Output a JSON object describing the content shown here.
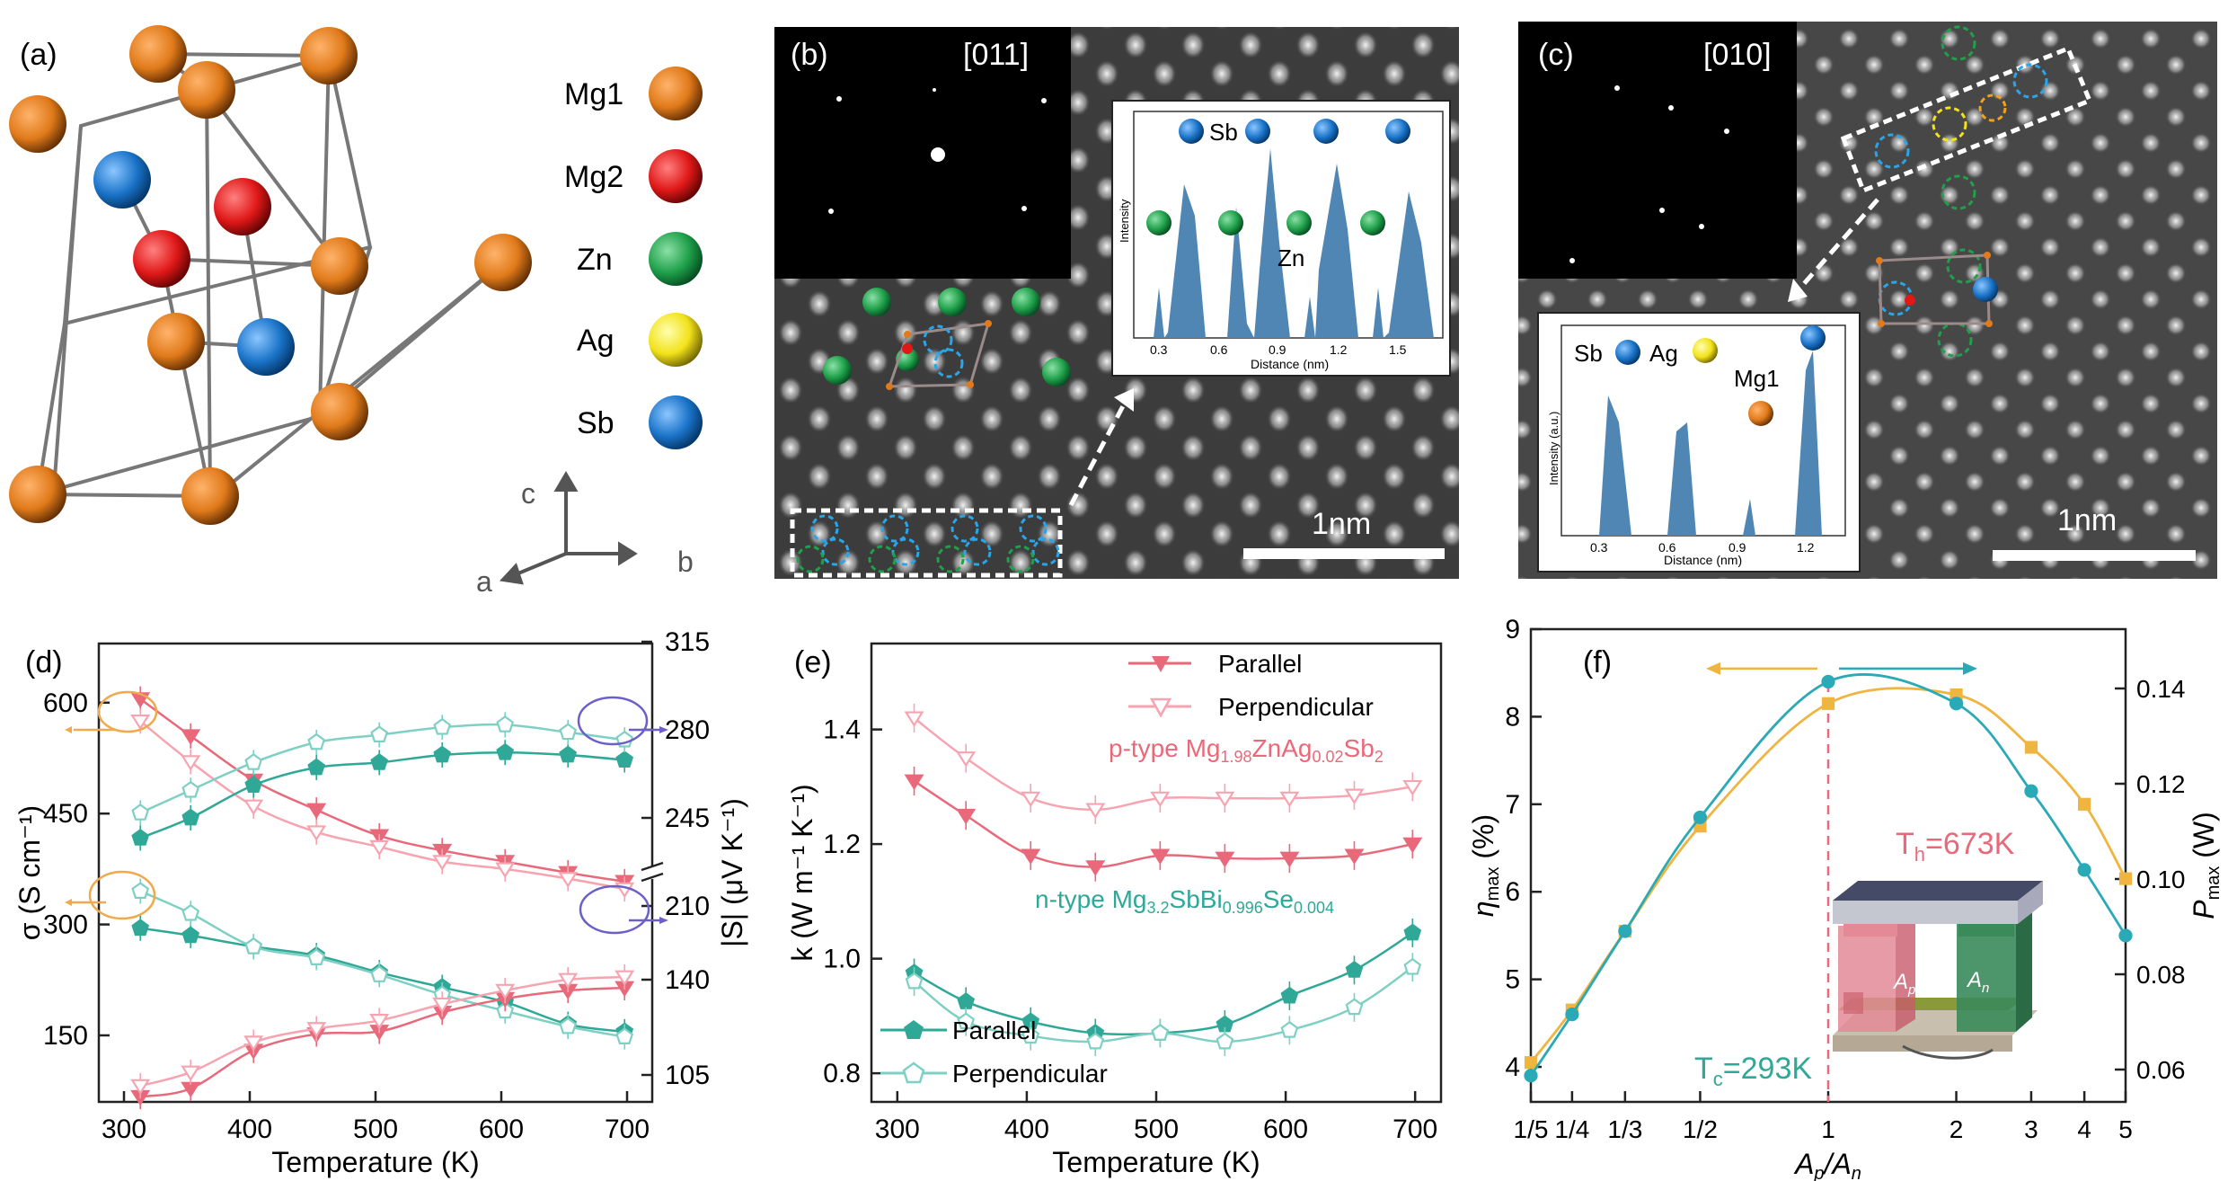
{
  "panel_a": {
    "label": "(a)",
    "legend": [
      "Mg1",
      "Mg2",
      "Zn",
      "Ag",
      "Sb"
    ],
    "legend_colors": [
      "#e07a1a",
      "#e01818",
      "#1fa04a",
      "#f2e21a",
      "#1a73c8"
    ],
    "axes": {
      "c": "c",
      "a": "a",
      "b": "b"
    }
  },
  "panel_b": {
    "label": "(b)",
    "zone": "[011]",
    "scale": "1nm",
    "inset": {
      "atom_sb": "Sb",
      "atom_zn": "Zn",
      "ylabel": "Intensity",
      "xlabel": "Distance (nm)",
      "ticks": [
        "0.3",
        "0.6",
        "0.9",
        "1.2",
        "1.5"
      ]
    }
  },
  "panel_c": {
    "label": "(c)",
    "zone": "[010]",
    "scale": "1nm",
    "inset": {
      "atom_sb": "Sb",
      "atom_ag": "Ag",
      "atom_mg1": "Mg1",
      "ylabel": "Intensity (a.u.)",
      "xlabel": "Distance (nm)",
      "ticks": [
        "0.3",
        "0.6",
        "0.9",
        "1.2"
      ]
    }
  },
  "chart_data": [
    {
      "type": "line",
      "panel": "(d)",
      "xlabel": "Temperature (K)",
      "ylabel_left": "σ (S cm⁻¹)",
      "ylabel_right": "|S| (μV K⁻¹)",
      "xlim": [
        280,
        720
      ],
      "xticks": [
        "300",
        "400",
        "500",
        "600",
        "700"
      ],
      "ylim_left": [
        60,
        680
      ],
      "yticks_left": [
        "150",
        "300",
        "450",
        "600"
      ],
      "yticks_right": [
        "105",
        "140",
        "210",
        "245",
        "280",
        "315"
      ],
      "x": [
        313,
        353,
        403,
        453,
        503,
        553,
        603,
        653,
        698
      ],
      "series": [
        {
          "color": "#e8697a",
          "marker": "filled-triangle",
          "axis": "left",
          "values": [
            605,
            555,
            495,
            455,
            420,
            400,
            385,
            370,
            358
          ]
        },
        {
          "color": "#e8697a",
          "marker": "open-triangle",
          "axis": "left",
          "values": [
            575,
            520,
            460,
            425,
            405,
            385,
            375,
            362,
            348
          ]
        },
        {
          "color": "#2fa897",
          "marker": "filled-pentagon",
          "axis": "left",
          "values": [
            295,
            285,
            270,
            258,
            235,
            215,
            195,
            165,
            155
          ]
        },
        {
          "color": "#2fa897",
          "marker": "open-pentagon",
          "axis": "left",
          "values": [
            345,
            315,
            270,
            255,
            232,
            205,
            183,
            162,
            148
          ]
        },
        {
          "color": "#2fa897",
          "marker": "filled-pentagon",
          "axis": "right",
          "values": [
            237,
            245,
            258,
            265,
            267,
            270,
            271,
            270,
            268
          ]
        },
        {
          "color": "#2fa897",
          "marker": "open-pentagon",
          "axis": "right",
          "values": [
            247,
            256,
            267,
            275,
            278,
            281,
            282,
            279,
            276
          ]
        },
        {
          "color": "#e8697a",
          "marker": "filled-triangle",
          "axis": "right",
          "values": [
            97,
            100,
            114,
            120,
            121,
            128,
            133,
            136,
            137
          ]
        },
        {
          "color": "#e8697a",
          "marker": "open-triangle",
          "axis": "right",
          "values": [
            101,
            106,
            117,
            122,
            125,
            131,
            136,
            140,
            141
          ]
        }
      ]
    },
    {
      "type": "line",
      "panel": "(e)",
      "xlabel": "Temperature (K)",
      "ylabel": "k (W m⁻¹ K⁻¹)",
      "xlim": [
        280,
        720
      ],
      "ylim": [
        0.75,
        1.55
      ],
      "xticks": [
        "300",
        "400",
        "500",
        "600",
        "700"
      ],
      "yticks": [
        "0.8",
        "1.0",
        "1.2",
        "1.4"
      ],
      "annotation_p": "p-type Mg1.98ZnAg0.02Sb2",
      "annotation_n": "n-type Mg3.2SbBi0.996Se0.004",
      "legend_p": [
        "Parallel",
        "Perpendicular"
      ],
      "legend_n": [
        "Parallel",
        "Perpendicular"
      ],
      "x": [
        313,
        353,
        403,
        453,
        503,
        553,
        603,
        653,
        698
      ],
      "series": [
        {
          "name": "Parallel",
          "color": "#e8697a",
          "marker": "filled-triangle",
          "values": [
            1.31,
            1.25,
            1.18,
            1.16,
            1.18,
            1.175,
            1.175,
            1.18,
            1.2
          ]
        },
        {
          "name": "Perpendicular",
          "color": "#e8697a",
          "marker": "open-triangle",
          "values": [
            1.42,
            1.35,
            1.28,
            1.26,
            1.28,
            1.28,
            1.28,
            1.285,
            1.3
          ]
        },
        {
          "name": "Parallel",
          "color": "#2fa897",
          "marker": "filled-pentagon",
          "values": [
            0.975,
            0.925,
            0.89,
            0.87,
            0.87,
            0.885,
            0.935,
            0.98,
            1.045
          ]
        },
        {
          "name": "Perpendicular",
          "color": "#2fa897",
          "marker": "open-pentagon",
          "values": [
            0.96,
            0.89,
            0.865,
            0.855,
            0.87,
            0.855,
            0.875,
            0.915,
            0.985
          ]
        }
      ]
    },
    {
      "type": "line",
      "panel": "(f)",
      "xlabel": "Ap/An",
      "ylabel_left": "ηmax (%)",
      "ylabel_right": "Pmax (W)",
      "xscale": "log",
      "xticks": [
        "1/5",
        "1/4",
        "1/3",
        "1/2",
        "1",
        "2",
        "3",
        "4",
        "5"
      ],
      "ylim_left": [
        3.6,
        9.0
      ],
      "yticks_left": [
        "4",
        "5",
        "6",
        "7",
        "8",
        "9"
      ],
      "yticks_right": [
        "0.06",
        "0.08",
        "0.10",
        "0.12",
        "0.14"
      ],
      "th_label": "Th=673K",
      "tc_label": "Tc=293K",
      "inset_labels": [
        "Ap",
        "An"
      ],
      "x": [
        0.2,
        0.25,
        0.333,
        0.5,
        1,
        2,
        3,
        4,
        5
      ],
      "series": [
        {
          "color": "#f0b440",
          "marker": "filled-square",
          "values": [
            4.05,
            4.65,
            5.55,
            6.75,
            8.15,
            8.25,
            7.65,
            7.0,
            6.15
          ]
        },
        {
          "color": "#2aa9b6",
          "marker": "filled-circle",
          "values": [
            3.9,
            4.6,
            5.55,
            6.85,
            8.4,
            8.15,
            7.15,
            6.25,
            5.5
          ]
        }
      ]
    }
  ]
}
